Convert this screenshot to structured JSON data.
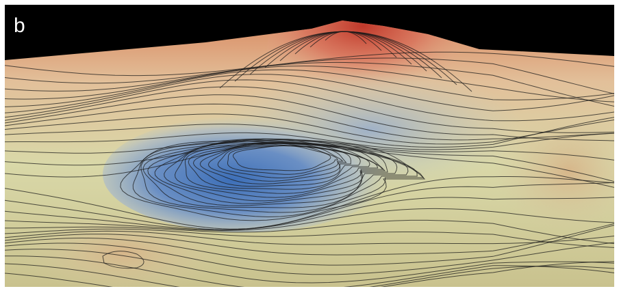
{
  "panel_label": "b"
}
